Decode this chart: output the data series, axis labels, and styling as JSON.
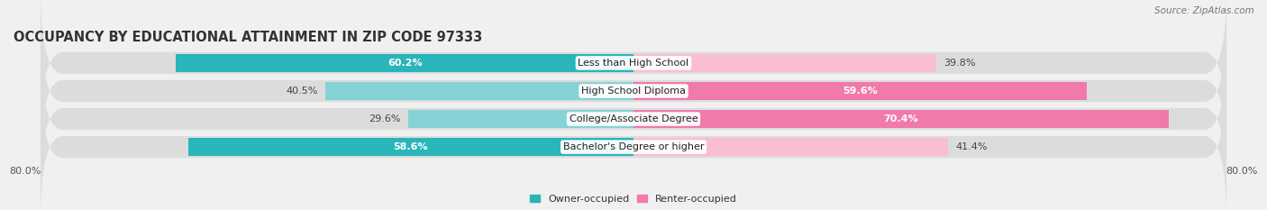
{
  "title": "OCCUPANCY BY EDUCATIONAL ATTAINMENT IN ZIP CODE 97333",
  "source": "Source: ZipAtlas.com",
  "categories": [
    "Bachelor's Degree or higher",
    "College/Associate Degree",
    "High School Diploma",
    "Less than High School"
  ],
  "owner_pct": [
    58.6,
    29.6,
    40.5,
    60.2
  ],
  "renter_pct": [
    41.4,
    70.4,
    59.6,
    39.8
  ],
  "owner_color_strong": "#29b5ba",
  "owner_color_light": "#85d3d6",
  "renter_color_strong": "#f07aaa",
  "renter_color_light": "#f9bdd4",
  "bg_color": "#f0f0f0",
  "bar_bg_color": "#dcdcdc",
  "axis_min": -80.0,
  "axis_max": 80.0,
  "x_tick_labels": [
    "80.0%",
    "80.0%"
  ],
  "title_fontsize": 10.5,
  "label_fontsize": 8.0,
  "tick_fontsize": 8.0,
  "source_fontsize": 7.5,
  "bar_height": 0.62
}
